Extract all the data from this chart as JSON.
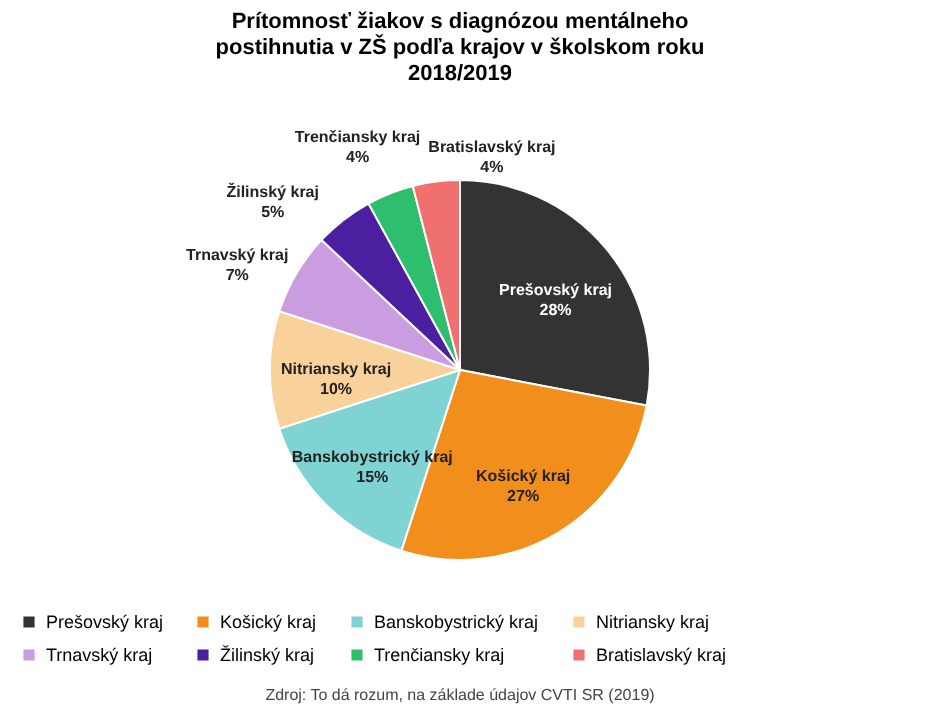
{
  "chart_data": {
    "type": "pie",
    "title": "Prítomnosť žiakov s diagnózou mentálneho postihnutia v ZŠ podľa krajov v školskom roku 2018/2019",
    "categories": [
      "Prešovský kraj",
      "Košický kraj",
      "Banskobystrický kraj",
      "Nitriansky kraj",
      "Trnavský kraj",
      "Žilinský kraj",
      "Trenčiansky kraj",
      "Bratislavský kraj"
    ],
    "values": [
      28,
      27,
      15,
      10,
      7,
      5,
      4,
      4
    ],
    "value_labels": [
      "28%",
      "27%",
      "15%",
      "10%",
      "7%",
      "5%",
      "4%",
      "4%"
    ],
    "colors": [
      "#333333",
      "#f28e1c",
      "#7fd3d3",
      "#f9d29b",
      "#c99de0",
      "#4b1fa0",
      "#2dbf6e",
      "#f07070"
    ],
    "legend": "bottom",
    "annotations": [
      "Zdroj: To dá rozum, na základe údajov CVTI SR (2019)"
    ]
  }
}
